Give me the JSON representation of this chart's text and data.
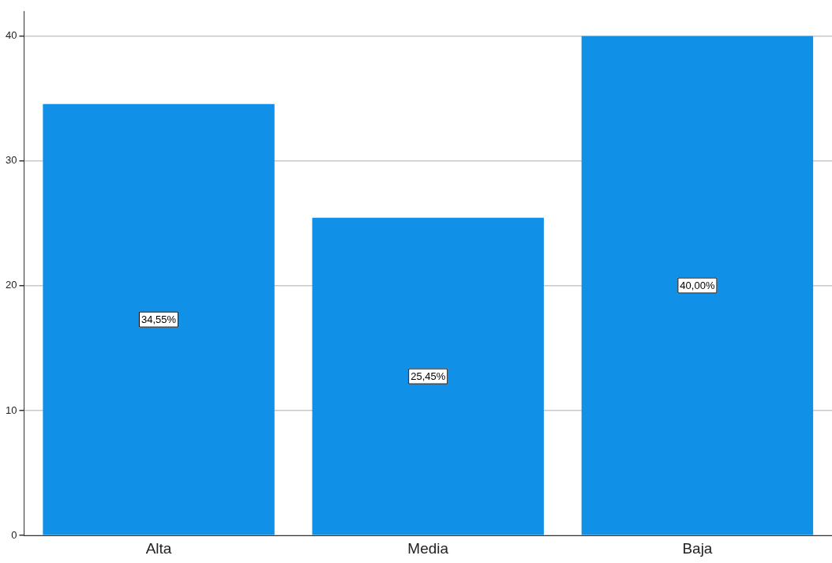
{
  "chart_data": {
    "type": "bar",
    "categories": [
      "Alta",
      "Media",
      "Baja"
    ],
    "values": [
      34.55,
      25.45,
      40.0
    ],
    "color": "#1190e8",
    "value_labels": [
      "34,55%",
      "25,45%",
      "40,00%"
    ],
    "ylim": [
      0,
      42
    ],
    "yticks": [
      0,
      10,
      20,
      30,
      40
    ],
    "grid": "y",
    "legend": false
  }
}
